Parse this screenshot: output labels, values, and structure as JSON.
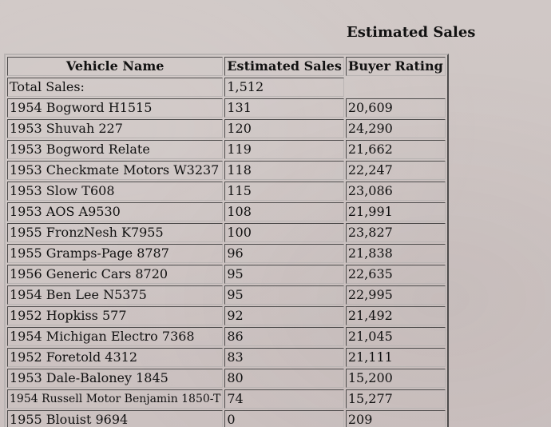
{
  "page": {
    "title": "Estimated Sales"
  },
  "table": {
    "headers": {
      "name": "Vehicle Name",
      "sales": "Estimated Sales",
      "rating": "Buyer Rating"
    },
    "total": {
      "label": "Total Sales:",
      "value": "1,512"
    },
    "rows": [
      {
        "name": "1954 Bogword H1515",
        "sales": "131",
        "rating": "20,609"
      },
      {
        "name": "1953 Shuvah 227",
        "sales": "120",
        "rating": "24,290"
      },
      {
        "name": "1953 Bogword Relate",
        "sales": "119",
        "rating": "21,662"
      },
      {
        "name": "1953 Checkmate Motors W3237",
        "sales": "118",
        "rating": "22,247"
      },
      {
        "name": "1953 Slow T608",
        "sales": "115",
        "rating": "23,086"
      },
      {
        "name": "1953 AOS A9530",
        "sales": "108",
        "rating": "21,991"
      },
      {
        "name": "1955 FronzNesh K7955",
        "sales": "100",
        "rating": "23,827"
      },
      {
        "name": "1955 Gramps-Page 8787",
        "sales": "96",
        "rating": "21,838"
      },
      {
        "name": "1956 Generic Cars 8720",
        "sales": "95",
        "rating": "22,635"
      },
      {
        "name": "1954 Ben Lee N5375",
        "sales": "95",
        "rating": "22,995"
      },
      {
        "name": "1952 Hopkiss 577",
        "sales": "92",
        "rating": "21,492"
      },
      {
        "name": "1954 Michigan Electro 7368",
        "sales": "86",
        "rating": "21,045"
      },
      {
        "name": "1952 Foretold 4312",
        "sales": "83",
        "rating": "21,111"
      },
      {
        "name": "1953 Dale-Baloney 1845",
        "sales": "80",
        "rating": "15,200"
      },
      {
        "name": "1954 Russell Motor Benjamin 1850-T",
        "sales": "74",
        "rating": "15,277"
      },
      {
        "name": "1955 Blouist 9694",
        "sales": "0",
        "rating": "209"
      }
    ]
  }
}
